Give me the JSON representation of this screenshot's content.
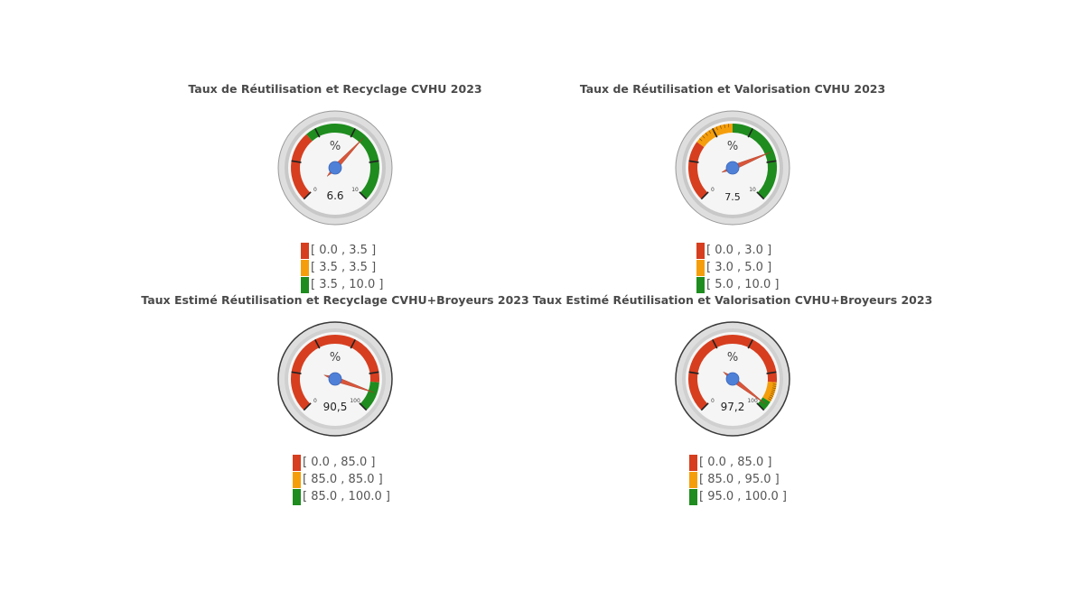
{
  "chart_data": [
    {
      "type": "gauge",
      "title": "Taux de Réutilisation et Recyclage CVHU 2023",
      "unit": "%",
      "value": 6.6,
      "value_label": "6.6",
      "range": [
        0,
        10
      ],
      "min_label": "0",
      "max_label": "10",
      "bands": [
        {
          "from": 0.0,
          "to": 3.5,
          "color": "#d63e1f",
          "label": "[ 0.0 , 3.5 ]"
        },
        {
          "from": 3.5,
          "to": 3.5,
          "color": "#f59e0b",
          "label": "[ 3.5 , 3.5 ]"
        },
        {
          "from": 3.5,
          "to": 10.0,
          "color": "#1e8c1e",
          "label": "[ 3.5 , 10.0 ]"
        }
      ]
    },
    {
      "type": "gauge",
      "title": "Taux de Réutilisation et Valorisation CVHU 2023",
      "unit": "%",
      "value": 7.5,
      "value_label": "7.5",
      "range": [
        0,
        10
      ],
      "min_label": "0",
      "max_label": "10",
      "bands": [
        {
          "from": 0.0,
          "to": 3.0,
          "color": "#d63e1f",
          "label": "[ 0.0 , 3.0 ]"
        },
        {
          "from": 3.0,
          "to": 5.0,
          "color": "#f59e0b",
          "label": "[ 3.0 , 5.0 ]"
        },
        {
          "from": 5.0,
          "to": 10.0,
          "color": "#1e8c1e",
          "label": "[ 5.0 , 10.0 ]"
        }
      ]
    },
    {
      "type": "gauge",
      "title": "Taux Estimé Réutilisation et Recyclage CVHU+Broyeurs 2023",
      "unit": "%",
      "value": 90.5,
      "value_label": "90,5",
      "range": [
        0,
        100
      ],
      "min_label": "0",
      "max_label": "100",
      "bands": [
        {
          "from": 0.0,
          "to": 85.0,
          "color": "#d63e1f",
          "label": "[ 0.0 , 85.0 ]"
        },
        {
          "from": 85.0,
          "to": 85.0,
          "color": "#f59e0b",
          "label": "[ 85.0 , 85.0 ]"
        },
        {
          "from": 85.0,
          "to": 100.0,
          "color": "#1e8c1e",
          "label": "[ 85.0 , 100.0 ]"
        }
      ]
    },
    {
      "type": "gauge",
      "title": "Taux Estimé Réutilisation et Valorisation CVHU+Broyeurs 2023",
      "unit": "%",
      "value": 97.2,
      "value_label": "97,2",
      "range": [
        0,
        100
      ],
      "min_label": "0",
      "max_label": "100",
      "bands": [
        {
          "from": 0.0,
          "to": 85.0,
          "color": "#d63e1f",
          "label": "[ 0.0 , 85.0 ]"
        },
        {
          "from": 85.0,
          "to": 95.0,
          "color": "#f59e0b",
          "label": "[ 85.0 , 95.0 ]"
        },
        {
          "from": 95.0,
          "to": 100.0,
          "color": "#1e8c1e",
          "label": "[ 95.0 , 100.0 ]"
        }
      ]
    }
  ],
  "colors": {
    "needle": "#d9553a",
    "hub": "#4f80d8",
    "ring": "#c8c8c8",
    "face": "#f5f5f5"
  }
}
